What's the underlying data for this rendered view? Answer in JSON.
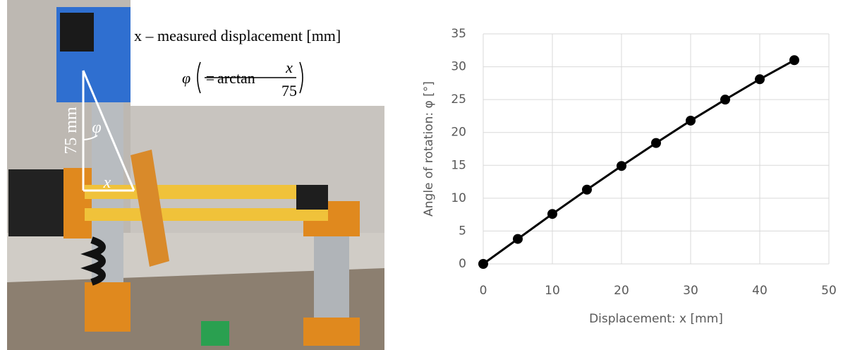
{
  "photo_annotations": {
    "definition": "x – measured displacement [mm]",
    "formula": {
      "lhs": "φ",
      "equals": "=",
      "function": "arctan",
      "numerator": "x",
      "denominator": "75"
    },
    "arm_length": "75 mm",
    "angle": "φ",
    "displacement": "x"
  },
  "chart_data": {
    "type": "line",
    "xlabel": "Displacement: x [mm]",
    "ylabel": "Angle of rotation: φ [°]",
    "x": [
      0,
      5,
      10,
      15,
      20,
      25,
      30,
      35,
      40,
      45
    ],
    "series": [
      {
        "name": "φ",
        "color": "#000000",
        "values": [
          0,
          3.8,
          7.6,
          11.3,
          14.9,
          18.4,
          21.8,
          25.0,
          28.1,
          31.0
        ]
      }
    ],
    "xlim": [
      0,
      50
    ],
    "ylim": [
      0,
      35
    ],
    "xticks": [
      0,
      10,
      20,
      30,
      40,
      50
    ],
    "yticks": [
      0,
      5,
      10,
      15,
      20,
      25,
      30,
      35
    ],
    "grid": true
  }
}
